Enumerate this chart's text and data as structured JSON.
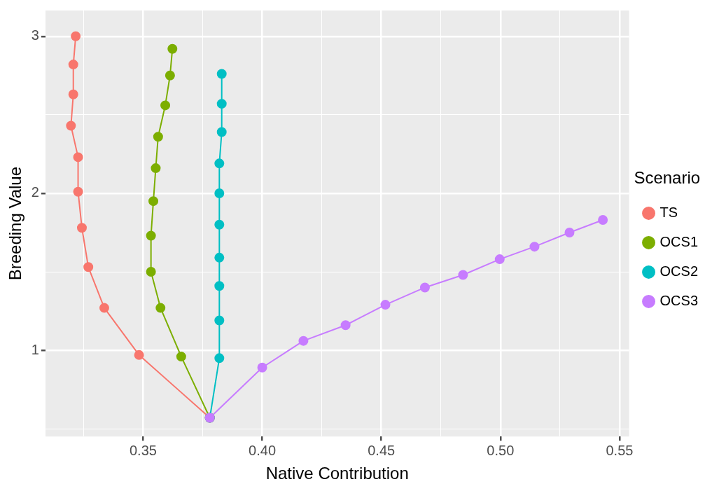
{
  "chart_data": {
    "type": "line",
    "xlabel": "Native Contribution",
    "ylabel": "Breeding Value",
    "legend_title": "Scenario",
    "legend": "right",
    "grid": true,
    "marker": "circle",
    "line_style": "solid",
    "xlim": [
      0.309,
      0.554
    ],
    "xticks": [
      {
        "value": 0.325,
        "label": null
      },
      0.35,
      {
        "value": 0.375,
        "label": null
      },
      "0.40",
      {
        "value": 0.425,
        "label": null
      },
      0.45,
      {
        "value": 0.475,
        "label": null
      },
      "0.50",
      {
        "value": 0.525,
        "label": null
      },
      0.55
    ],
    "ylim": [
      0.451,
      3.164
    ],
    "yticks": [
      {
        "value": 0.5,
        "label": null
      },
      1,
      {
        "value": 1.5,
        "label": null
      },
      2,
      {
        "value": 2.5,
        "label": null
      },
      3
    ],
    "series": [
      {
        "name": "TS",
        "color": "#f8766d",
        "x": [
          0.3217,
          0.3207,
          0.3207,
          0.3197,
          0.3227,
          0.3227,
          0.3243,
          0.327,
          0.3337,
          0.3483,
          0.378
        ],
        "values": [
          3.0,
          2.82,
          2.63,
          2.43,
          2.23,
          2.01,
          1.78,
          1.53,
          1.27,
          0.97,
          0.57
        ]
      },
      {
        "name": "OCS1",
        "color": "#7cae00",
        "x": [
          0.3623,
          0.3613,
          0.3593,
          0.3563,
          0.3553,
          0.3543,
          0.3533,
          0.3533,
          0.3573,
          0.366,
          0.378
        ],
        "values": [
          2.92,
          2.75,
          2.56,
          2.36,
          2.16,
          1.95,
          1.73,
          1.5,
          1.27,
          0.96,
          0.57
        ]
      },
      {
        "name": "OCS2",
        "color": "#00bfc4",
        "x": [
          0.383,
          0.383,
          0.383,
          0.382,
          0.382,
          0.382,
          0.382,
          0.382,
          0.382,
          0.382,
          0.378
        ],
        "values": [
          2.76,
          2.57,
          2.39,
          2.19,
          2.0,
          1.8,
          1.59,
          1.41,
          1.19,
          0.95,
          0.57
        ]
      },
      {
        "name": "OCS3",
        "color": "#c77cff",
        "x": [
          0.378,
          0.4,
          0.4173,
          0.435,
          0.4517,
          0.4683,
          0.4843,
          0.4997,
          0.5143,
          0.529,
          0.543
        ],
        "values": [
          0.57,
          0.89,
          1.06,
          1.16,
          1.29,
          1.4,
          1.48,
          1.58,
          1.66,
          1.75,
          1.83
        ]
      }
    ]
  }
}
